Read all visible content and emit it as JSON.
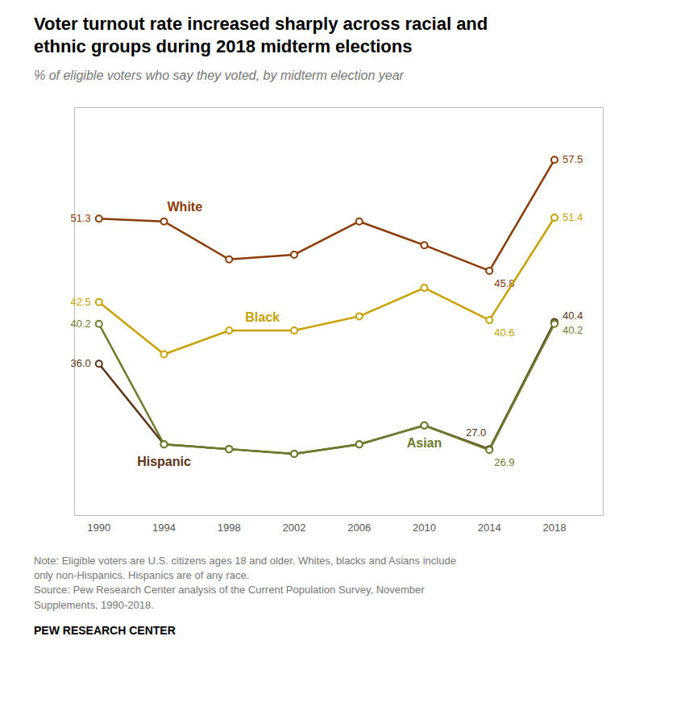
{
  "chart_data": {
    "type": "line",
    "title": "Voter turnout rate increased sharply across racial and\nethnic groups during 2018 midterm elections",
    "subtitle": "% of eligible voters who say they voted, by midterm election year",
    "x": [
      1990,
      1994,
      1998,
      2002,
      2006,
      2010,
      2014,
      2018
    ],
    "series": [
      {
        "name": "White",
        "color": "#8B3A00",
        "values": [
          51.3,
          51.0,
          47.0,
          47.5,
          51.0,
          48.5,
          45.8,
          57.5
        ],
        "value_labels": [
          "51.3",
          null,
          null,
          null,
          null,
          null,
          "45.8",
          "57.5"
        ]
      },
      {
        "name": "Black",
        "color": "#C8A000",
        "values": [
          42.5,
          37.0,
          39.5,
          39.5,
          41.0,
          44.0,
          40.6,
          51.4
        ],
        "value_labels": [
          "42.5",
          null,
          null,
          null,
          null,
          null,
          "40.6",
          "51.4"
        ]
      },
      {
        "name": "Hispanic",
        "color": "#5C3317",
        "values": [
          36.0,
          27.5,
          27.0,
          26.5,
          27.5,
          29.5,
          27.0,
          40.4
        ],
        "value_labels": [
          "36.0",
          null,
          null,
          null,
          null,
          null,
          "27.0",
          "40.4"
        ]
      },
      {
        "name": "Asian",
        "color": "#6B7C2A",
        "values": [
          40.2,
          27.5,
          27.0,
          26.5,
          27.5,
          29.5,
          26.9,
          40.2
        ],
        "value_labels": [
          "40.2",
          null,
          null,
          null,
          null,
          null,
          "26.9",
          "40.2"
        ]
      }
    ],
    "xlim": [
      1988.5,
      2021
    ],
    "xticks": [
      1990,
      1994,
      1998,
      2002,
      2006,
      2010,
      2014,
      2018
    ],
    "ylim": [
      20,
      63
    ],
    "tick_labels": "x",
    "grid": false,
    "marker": "circle",
    "data_labels": true,
    "notes": [
      "Note: Eligible voters are U.S. citizens ages 18 and older. Whites, blacks and Asians include",
      "only non-Hispanics. Hispanics are of any race.",
      "Source: Pew Research Center analysis of the Current Population Survey, November",
      "Supplements, 1990-2018."
    ],
    "credit": "PEW RESEARCH CENTER"
  }
}
